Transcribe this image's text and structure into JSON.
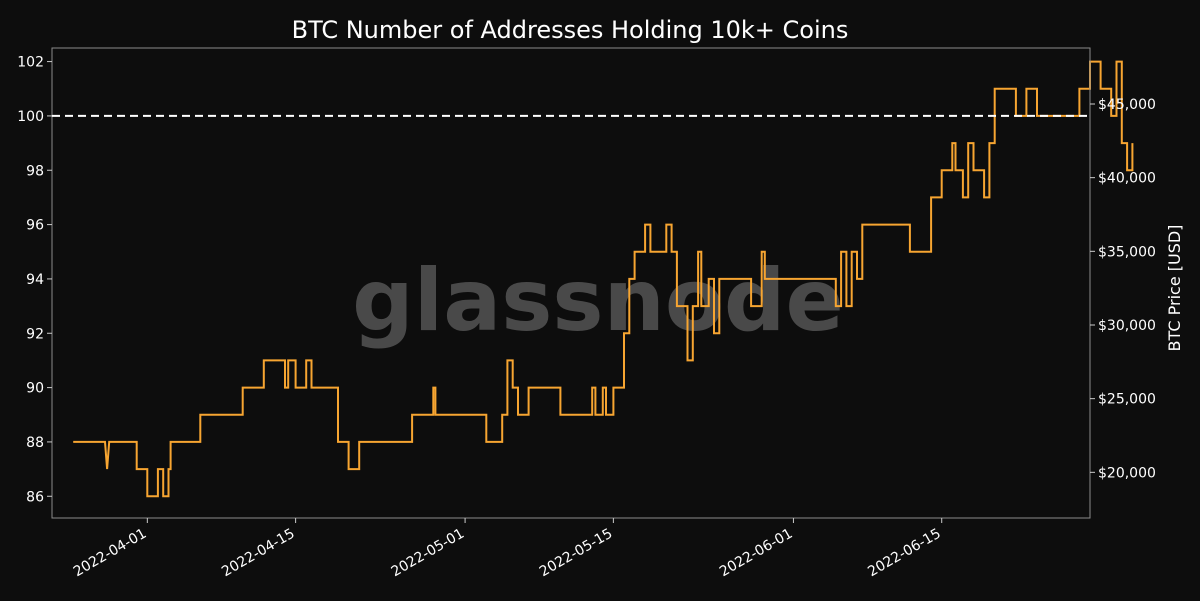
{
  "chart_data": {
    "type": "line",
    "title": "BTC Number of Addresses Holding 10k+ Coins",
    "xlabel": "",
    "ylabel": "",
    "y2label": "BTC Price [USD]",
    "watermark": "glassnode",
    "x_ticks": [
      "2022-04-01",
      "2022-04-15",
      "2022-05-01",
      "2022-05-15",
      "2022-06-01",
      "2022-06-15"
    ],
    "y_ticks": [
      86,
      88,
      90,
      92,
      94,
      96,
      98,
      100,
      102
    ],
    "y2_ticks": [
      "$20,000",
      "$25,000",
      "$30,000",
      "$35,000",
      "$40,000",
      "$45,000"
    ],
    "ylim": [
      85.2,
      102.5
    ],
    "y2lim": [
      16900,
      48800
    ],
    "xlim": [
      "2022-03-23",
      "2022-06-29"
    ],
    "reference_line": {
      "y": 100,
      "style": "dashed",
      "color": "#ffffff"
    },
    "colors": {
      "addresses": "#f7a531",
      "price": "#8c8c8c",
      "background": "#0d0d0d",
      "text": "#ffffff"
    },
    "series": [
      {
        "axis": "left",
        "color": "#f7a531",
        "step": true,
        "points": [
          [
            "2022-03-25",
            88
          ],
          [
            "2022-03-28",
            88
          ],
          [
            "2022-03-28.2",
            87
          ],
          [
            "2022-03-28.4",
            88
          ],
          [
            "2022-03-31",
            88
          ],
          [
            "2022-03-31",
            87
          ],
          [
            "2022-04-01",
            87
          ],
          [
            "2022-04-01",
            86
          ],
          [
            "2022-04-02",
            86
          ],
          [
            "2022-04-02",
            87
          ],
          [
            "2022-04-02.5",
            87
          ],
          [
            "2022-04-02.5",
            86
          ],
          [
            "2022-04-03",
            86
          ],
          [
            "2022-04-03",
            87
          ],
          [
            "2022-04-03.2",
            87
          ],
          [
            "2022-04-03.2",
            88
          ],
          [
            "2022-04-06",
            88
          ],
          [
            "2022-04-06",
            89
          ],
          [
            "2022-04-10",
            89
          ],
          [
            "2022-04-10",
            90
          ],
          [
            "2022-04-12",
            90
          ],
          [
            "2022-04-12",
            91
          ],
          [
            "2022-04-14",
            91
          ],
          [
            "2022-04-14",
            90
          ],
          [
            "2022-04-14.3",
            90
          ],
          [
            "2022-04-14.3",
            91
          ],
          [
            "2022-04-15",
            91
          ],
          [
            "2022-04-15",
            90
          ],
          [
            "2022-04-16",
            90
          ],
          [
            "2022-04-16",
            91
          ],
          [
            "2022-04-16.5",
            91
          ],
          [
            "2022-04-16.5",
            90
          ],
          [
            "2022-04-19",
            90
          ],
          [
            "2022-04-19",
            88
          ],
          [
            "2022-04-20",
            88
          ],
          [
            "2022-04-20",
            87
          ],
          [
            "2022-04-21",
            87
          ],
          [
            "2022-04-21",
            88
          ],
          [
            "2022-04-26",
            88
          ],
          [
            "2022-04-26",
            89
          ],
          [
            "2022-04-28",
            89
          ],
          [
            "2022-04-28",
            90
          ],
          [
            "2022-04-28.2",
            90
          ],
          [
            "2022-04-28.2",
            89
          ],
          [
            "2022-05-03",
            89
          ],
          [
            "2022-05-03",
            88
          ],
          [
            "2022-05-04.5",
            88
          ],
          [
            "2022-05-04.5",
            89
          ],
          [
            "2022-05-05",
            89
          ],
          [
            "2022-05-05",
            91
          ],
          [
            "2022-05-05.5",
            91
          ],
          [
            "2022-05-05.5",
            90
          ],
          [
            "2022-05-06",
            90
          ],
          [
            "2022-05-06",
            89
          ],
          [
            "2022-05-07",
            89
          ],
          [
            "2022-05-07",
            90
          ],
          [
            "2022-05-10",
            90
          ],
          [
            "2022-05-10",
            89
          ],
          [
            "2022-05-13",
            89
          ],
          [
            "2022-05-13",
            90
          ],
          [
            "2022-05-13.3",
            90
          ],
          [
            "2022-05-13.3",
            89
          ],
          [
            "2022-05-14",
            89
          ],
          [
            "2022-05-14",
            90
          ],
          [
            "2022-05-14.3",
            90
          ],
          [
            "2022-05-14.3",
            89
          ],
          [
            "2022-05-15",
            89
          ],
          [
            "2022-05-15",
            90
          ],
          [
            "2022-05-16",
            90
          ],
          [
            "2022-05-16",
            92
          ],
          [
            "2022-05-16.5",
            92
          ],
          [
            "2022-05-16.5",
            94
          ],
          [
            "2022-05-17",
            94
          ],
          [
            "2022-05-17",
            95
          ],
          [
            "2022-05-18",
            95
          ],
          [
            "2022-05-18",
            96
          ],
          [
            "2022-05-18.5",
            96
          ],
          [
            "2022-05-18.5",
            95
          ],
          [
            "2022-05-20",
            95
          ],
          [
            "2022-05-20",
            96
          ],
          [
            "2022-05-20.5",
            96
          ],
          [
            "2022-05-20.5",
            95
          ],
          [
            "2022-05-21",
            95
          ],
          [
            "2022-05-21",
            93
          ],
          [
            "2022-05-22",
            93
          ],
          [
            "2022-05-22",
            91
          ],
          [
            "2022-05-22.5",
            91
          ],
          [
            "2022-05-22.5",
            93
          ],
          [
            "2022-05-23",
            93
          ],
          [
            "2022-05-23",
            95
          ],
          [
            "2022-05-23.3",
            95
          ],
          [
            "2022-05-23.3",
            93
          ],
          [
            "2022-05-24",
            93
          ],
          [
            "2022-05-24",
            94
          ],
          [
            "2022-05-24.5",
            94
          ],
          [
            "2022-05-24.5",
            92
          ],
          [
            "2022-05-25",
            92
          ],
          [
            "2022-05-25",
            94
          ],
          [
            "2022-05-28",
            94
          ],
          [
            "2022-05-28",
            93
          ],
          [
            "2022-05-29",
            93
          ],
          [
            "2022-05-29",
            95
          ],
          [
            "2022-05-29.3",
            95
          ],
          [
            "2022-05-29.3",
            94
          ],
          [
            "2022-06-05",
            94
          ],
          [
            "2022-06-05",
            93
          ],
          [
            "2022-06-05.5",
            93
          ],
          [
            "2022-06-05.5",
            95
          ],
          [
            "2022-06-06",
            95
          ],
          [
            "2022-06-06",
            93
          ],
          [
            "2022-06-06.5",
            93
          ],
          [
            "2022-06-06.5",
            95
          ],
          [
            "2022-06-07",
            95
          ],
          [
            "2022-06-07",
            94
          ],
          [
            "2022-06-07.5",
            94
          ],
          [
            "2022-06-07.5",
            96
          ],
          [
            "2022-06-12",
            96
          ],
          [
            "2022-06-12",
            95
          ],
          [
            "2022-06-14",
            95
          ],
          [
            "2022-06-14",
            97
          ],
          [
            "2022-06-15",
            97
          ],
          [
            "2022-06-15",
            98
          ],
          [
            "2022-06-16",
            98
          ],
          [
            "2022-06-16",
            99
          ],
          [
            "2022-06-16.3",
            99
          ],
          [
            "2022-06-16.3",
            98
          ],
          [
            "2022-06-17",
            98
          ],
          [
            "2022-06-17",
            97
          ],
          [
            "2022-06-17.5",
            97
          ],
          [
            "2022-06-17.5",
            99
          ],
          [
            "2022-06-18",
            99
          ],
          [
            "2022-06-18",
            98
          ],
          [
            "2022-06-19",
            98
          ],
          [
            "2022-06-19",
            97
          ],
          [
            "2022-06-19.5",
            97
          ],
          [
            "2022-06-19.5",
            99
          ],
          [
            "2022-06-20",
            99
          ],
          [
            "2022-06-20",
            101
          ],
          [
            "2022-06-22",
            101
          ],
          [
            "2022-06-22",
            100
          ],
          [
            "2022-06-23",
            100
          ],
          [
            "2022-06-23",
            101
          ],
          [
            "2022-06-24",
            101
          ],
          [
            "2022-06-24",
            100
          ],
          [
            "2022-06-28",
            100
          ],
          [
            "2022-06-28",
            101
          ],
          [
            "2022-06-29",
            101
          ],
          [
            "2022-06-29",
            102
          ],
          [
            "2022-06-30",
            102
          ],
          [
            "2022-06-30",
            101
          ],
          [
            "2022-07-01",
            101
          ],
          [
            "2022-07-01",
            100
          ],
          [
            "2022-07-01.5",
            100
          ],
          [
            "2022-07-01.5",
            102
          ],
          [
            "2022-07-02",
            102
          ],
          [
            "2022-07-02",
            99
          ],
          [
            "2022-07-02.5",
            99
          ],
          [
            "2022-07-02.5",
            98
          ],
          [
            "2022-07-03",
            98
          ],
          [
            "2022-07-03",
            99
          ]
        ]
      },
      {
        "axis": "right",
        "color": "#8c8c8c",
        "step": false,
        "points": []
      }
    ]
  }
}
